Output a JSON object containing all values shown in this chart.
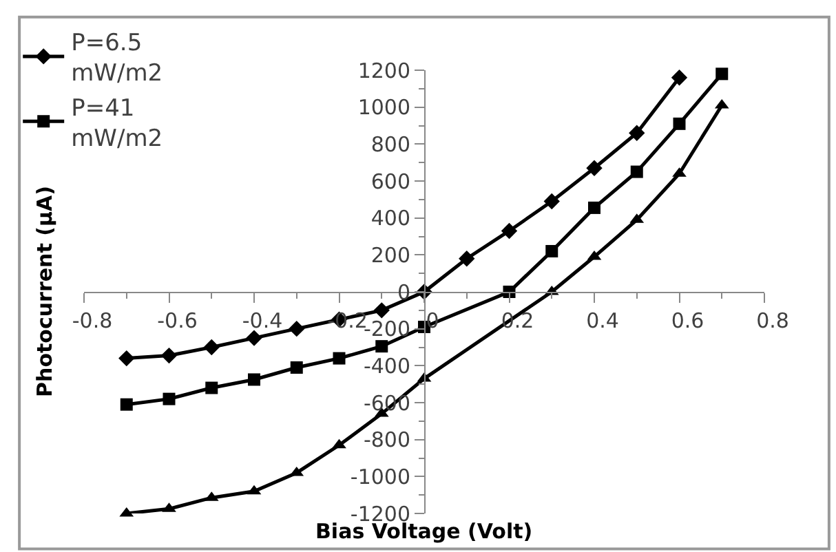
{
  "chart_data": {
    "type": "line",
    "xlabel": "Bias Voltage (Volt)",
    "ylabel": "Photocurrent (µA)",
    "xlim": [
      -0.8,
      0.8
    ],
    "xticks": [
      -0.8,
      -0.6,
      -0.4,
      -0.2,
      0,
      0.2,
      0.4,
      0.6,
      0.8
    ],
    "ylim": [
      -1200,
      1200
    ],
    "yticks": [
      -1200,
      -1000,
      -800,
      -600,
      -400,
      -200,
      0,
      200,
      400,
      600,
      800,
      1000,
      1200
    ],
    "legend": "top left",
    "line_style": "solid",
    "series": [
      {
        "name": "P=6.5 mW/m2",
        "color": "#000000",
        "marker": "diamond",
        "x": [
          -0.7,
          -0.6,
          -0.5,
          -0.4,
          -0.3,
          -0.2,
          -0.1,
          0,
          0.1,
          0.2,
          0.3,
          0.4,
          0.5,
          0.6
        ],
        "values": [
          -360,
          -345,
          -300,
          -250,
          -200,
          -150,
          -100,
          0,
          180,
          330,
          490,
          670,
          860,
          1160
        ]
      },
      {
        "name": "P=41 mW/m2",
        "color": "#000000",
        "marker": "square",
        "x": [
          -0.7,
          -0.6,
          -0.5,
          -0.4,
          -0.3,
          -0.2,
          -0.1,
          0,
          0.2,
          0.3,
          0.4,
          0.5,
          0.6,
          0.7
        ],
        "values": [
          -610,
          -580,
          -520,
          -475,
          -410,
          -360,
          -295,
          -190,
          0,
          220,
          455,
          650,
          910,
          1180
        ]
      },
      {
        "color": "#000000",
        "marker": "triangle",
        "x": [
          -0.7,
          -0.6,
          -0.5,
          -0.4,
          -0.3,
          -0.2,
          -0.1,
          0,
          0.3,
          0.4,
          0.5,
          0.6,
          0.7
        ],
        "values": [
          -1200,
          -1175,
          -1115,
          -1080,
          -980,
          -830,
          -660,
          -470,
          0,
          190,
          390,
          640,
          1010
        ]
      }
    ]
  }
}
